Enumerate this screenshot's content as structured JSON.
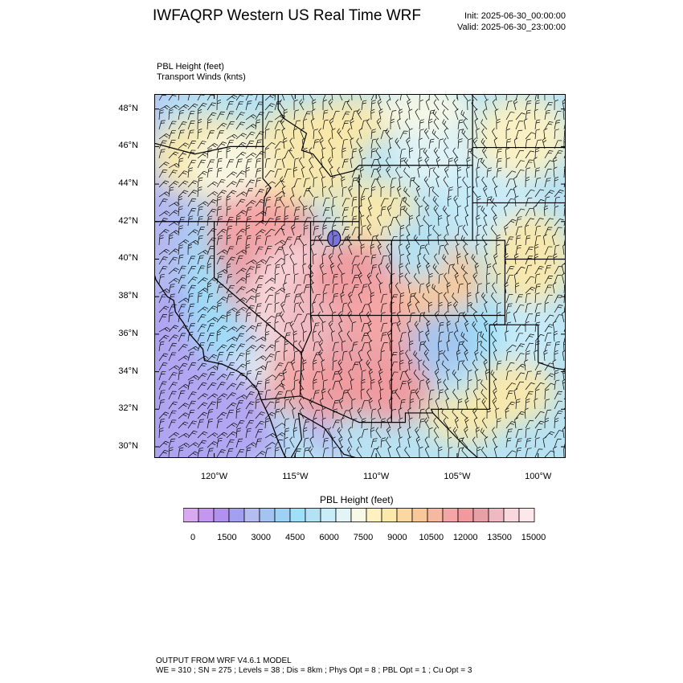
{
  "title": "IWFAQRP Western US Real Time WRF",
  "init": "Init: 2025-06-30_00:00:00",
  "valid": "Valid: 2025-06-30_23:00:00",
  "field_label": "PBL Height   (feet)",
  "wind_label": "Transport Winds   (knts)",
  "map": {
    "lat_range": [
      29.4,
      48.8
    ],
    "lon_range": [
      -123.7,
      -98.3
    ],
    "lat_ticks": [
      "48°N",
      "46°N",
      "44°N",
      "42°N",
      "40°N",
      "38°N",
      "36°N",
      "34°N",
      "32°N",
      "30°N"
    ],
    "lon_ticks": [
      "120°W",
      "115°W",
      "110°W",
      "105°W",
      "100°W"
    ]
  },
  "colorbar": {
    "title": "PBL Height  (feet)",
    "labels": [
      "0",
      "1500",
      "3000",
      "4500",
      "6000",
      "7500",
      "9000",
      "10500",
      "12000",
      "13500",
      "15000"
    ],
    "colors": [
      "#d8a8f0",
      "#c496f0",
      "#b191ee",
      "#a3a0f0",
      "#b3bdf0",
      "#a3c4f0",
      "#9ed2f4",
      "#9ee0f8",
      "#b4e2f4",
      "#c8ecf8",
      "#e2f4f6",
      "#f8f8e6",
      "#fff2c0",
      "#fce8a8",
      "#fad8a0",
      "#f8c898",
      "#f6b8a0",
      "#f4a6a6",
      "#f09a9e",
      "#e8a0a8",
      "#f0b8c0",
      "#f8d8dc",
      "#fce8ea"
    ]
  },
  "footer": {
    "line1": "OUTPUT FROM WRF V4.6.1 MODEL",
    "line2": "WE = 310 ; SN = 275 ; Levels = 38 ; Dis = 8km ; Phys Opt = 8 ; PBL Opt = 1 ; Cu Opt = 3"
  }
}
